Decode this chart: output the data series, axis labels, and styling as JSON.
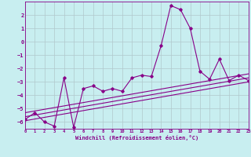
{
  "xlabel": "Windchill (Refroidissement éolien,°C)",
  "bg_color": "#c8eef0",
  "line_color": "#880088",
  "grid_color": "#b0c8cc",
  "xlim": [
    0,
    23
  ],
  "ylim": [
    -6.5,
    3.0
  ],
  "xticks": [
    0,
    1,
    2,
    3,
    4,
    5,
    6,
    7,
    8,
    9,
    10,
    11,
    12,
    13,
    14,
    15,
    16,
    17,
    18,
    19,
    20,
    21,
    22,
    23
  ],
  "yticks": [
    -6,
    -5,
    -4,
    -3,
    -2,
    -1,
    0,
    1,
    2
  ],
  "data_x": [
    0,
    1,
    2,
    3,
    4,
    5,
    6,
    7,
    8,
    9,
    10,
    11,
    12,
    13,
    14,
    15,
    16,
    17,
    18,
    19,
    20,
    21,
    22,
    23
  ],
  "data_y": [
    -5.8,
    -5.3,
    -6.0,
    -6.3,
    -2.7,
    -6.4,
    -3.5,
    -3.3,
    -3.7,
    -3.5,
    -3.7,
    -2.7,
    -2.5,
    -2.6,
    -0.3,
    2.7,
    2.4,
    1.0,
    -2.2,
    -2.8,
    -1.3,
    -2.9,
    -2.5,
    -2.9
  ],
  "line1_x": [
    0,
    23
  ],
  "line1_y": [
    -5.6,
    -2.7
  ],
  "line2_x": [
    0,
    23
  ],
  "line2_y": [
    -5.3,
    -2.4
  ],
  "line3_x": [
    0,
    23
  ],
  "line3_y": [
    -5.9,
    -3.0
  ]
}
